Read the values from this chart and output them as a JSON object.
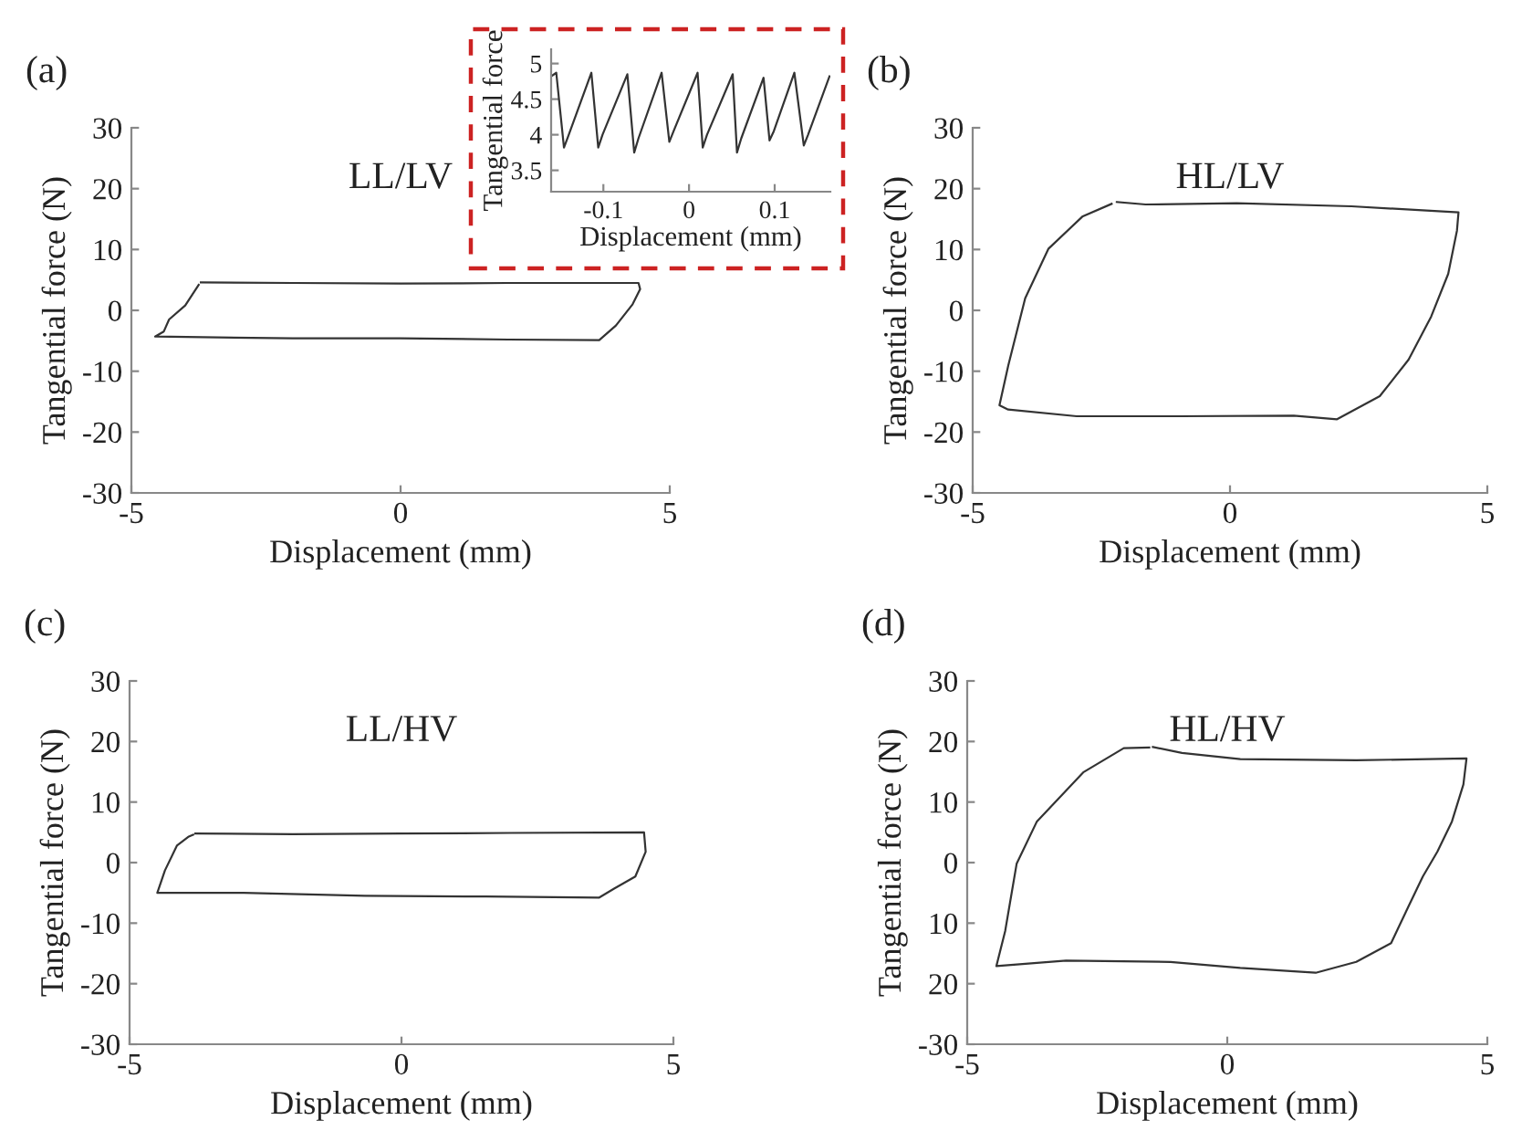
{
  "chart_data": [
    {
      "type": "line",
      "xlabel": "Displacement (mm)",
      "ylabel": "Tangential force",
      "xlim": [
        -0.161,
        0.165
      ],
      "ylim": [
        3.2,
        5.2
      ],
      "xticks": [
        -0.1,
        0,
        0.1
      ],
      "yticks": [
        3.5,
        4,
        4.5,
        5
      ],
      "series": [
        {
          "color": "#333333",
          "x": [
            -0.161,
            -0.155,
            -0.146,
            -0.141,
            -0.114,
            -0.106,
            -0.101,
            -0.072,
            -0.064,
            -0.059,
            -0.032,
            -0.023,
            -0.018,
            0.01,
            0.016,
            0.021,
            0.051,
            0.056,
            0.061,
            0.087,
            0.094,
            0.099,
            0.123,
            0.134,
            0.139,
            0.164
          ],
          "values": [
            4.82,
            4.87,
            3.82,
            3.98,
            4.87,
            3.82,
            4.0,
            4.85,
            3.75,
            3.95,
            4.87,
            3.9,
            4.05,
            4.87,
            3.82,
            4.0,
            4.85,
            3.75,
            3.95,
            4.8,
            3.92,
            4.05,
            4.87,
            3.85,
            4.0,
            4.82
          ]
        }
      ]
    },
    {
      "type": "line",
      "title": "LL/LV",
      "xlabel": "Displacement (mm)",
      "ylabel": "Tangential force (N)",
      "annotations": [
        "(a)"
      ],
      "xlim": [
        -5,
        5
      ],
      "ylim": [
        -30,
        30
      ],
      "xticks": [
        -5,
        0,
        5
      ],
      "yticks": [
        -30,
        -20,
        -10,
        0,
        10,
        20,
        30
      ],
      "series": [
        {
          "color": "#333333",
          "x": [
            -3.71,
            -2,
            0,
            2,
            4.42,
            4.45,
            4.31,
            4.0,
            3.69,
            2,
            0,
            -2,
            -4.56,
            -4.4,
            -4.3,
            -4.0,
            -3.75
          ],
          "values": [
            4.6,
            4.5,
            4.4,
            4.5,
            4.5,
            3.5,
            1,
            -2.5,
            -4.9,
            -4.8,
            -4.6,
            -4.6,
            -4.3,
            -3.5,
            -1.5,
            0.8,
            4.2
          ]
        }
      ]
    },
    {
      "type": "line",
      "title": "HL/LV",
      "xlabel": "Displacement (mm)",
      "ylabel": "Tangential force (N)",
      "annotations": [
        "(b)"
      ],
      "xlim": [
        -5,
        5
      ],
      "ylim": [
        -30,
        30
      ],
      "xticks": [
        -5,
        0,
        5
      ],
      "yticks": [
        -30,
        -20,
        -10,
        0,
        10,
        20,
        30
      ],
      "series": [
        {
          "color": "#333333",
          "x": [
            -2.2,
            -1.64,
            0.13,
            2.36,
            4.44,
            4.41,
            4.24,
            3.91,
            3.47,
            2.91,
            2.08,
            1.24,
            -0.98,
            -2.98,
            -4.31,
            -4.48,
            -4.31,
            -3.98,
            -3.53,
            -2.87,
            -2.3
          ],
          "values": [
            17.8,
            17.4,
            17.6,
            17.1,
            16.1,
            13.1,
            6.0,
            -1.0,
            -8.1,
            -14.1,
            -17.9,
            -17.3,
            -17.4,
            -17.4,
            -16.3,
            -15.6,
            -9.1,
            2.0,
            10.1,
            15.4,
            17.5
          ]
        }
      ]
    },
    {
      "type": "line",
      "title": "LL/HV",
      "xlabel": "Displacement (mm)",
      "ylabel": "Tangential force (N)",
      "annotations": [
        "(c)"
      ],
      "xlim": [
        -5,
        5
      ],
      "ylim": [
        -30,
        30
      ],
      "xticks": [
        -5,
        0,
        5
      ],
      "yticks": [
        -30,
        -20,
        -10,
        0,
        10,
        20,
        30
      ],
      "series": [
        {
          "color": "#333333",
          "x": [
            -3.79,
            -2,
            0,
            2,
            4.46,
            4.49,
            4.3,
            3.91,
            3.63,
            1.56,
            -0.67,
            -2.9,
            -4.49,
            -4.35,
            -4.13,
            -3.91,
            -3.83
          ],
          "values": [
            4.8,
            4.7,
            4.8,
            4.9,
            5.0,
            1.8,
            -2.3,
            -4.3,
            -5.8,
            -5.6,
            -5.5,
            -5.0,
            -5.0,
            -1.3,
            2.8,
            4.3,
            4.6
          ]
        }
      ]
    },
    {
      "type": "line",
      "title": "HL/HV",
      "xlabel": "Displacement (mm)",
      "ylabel": "Tangential force (N)",
      "annotations": [
        "(d)"
      ],
      "xlim": [
        -5,
        5
      ],
      "ylim": [
        -30,
        30
      ],
      "xticks": [
        -5,
        0,
        5
      ],
      "yticks": [
        -30,
        {
          "value": -20,
          "label": "20"
        },
        {
          "value": -10,
          "label": "10"
        },
        0,
        10,
        20,
        30
      ],
      "series": [
        {
          "color": "#333333",
          "x": [
            -1.43,
            -0.87,
            0.25,
            2.48,
            4.6,
            4.54,
            4.32,
            4.04,
            3.76,
            3.48,
            3.15,
            2.48,
            1.7,
            0.25,
            -1.09,
            -3.1,
            -4.44,
            -4.27,
            -4.05,
            -3.66,
            -2.77,
            -1.99,
            -1.5
          ],
          "values": [
            19.1,
            18.1,
            17.1,
            16.9,
            17.2,
            12.9,
            6.8,
            1.8,
            -2.3,
            -7.3,
            -13.3,
            -16.4,
            -18.2,
            -17.4,
            -16.4,
            -16.2,
            -17.1,
            -11.3,
            -0.2,
            6.8,
            14.9,
            18.9,
            19.0
          ]
        }
      ]
    }
  ]
}
